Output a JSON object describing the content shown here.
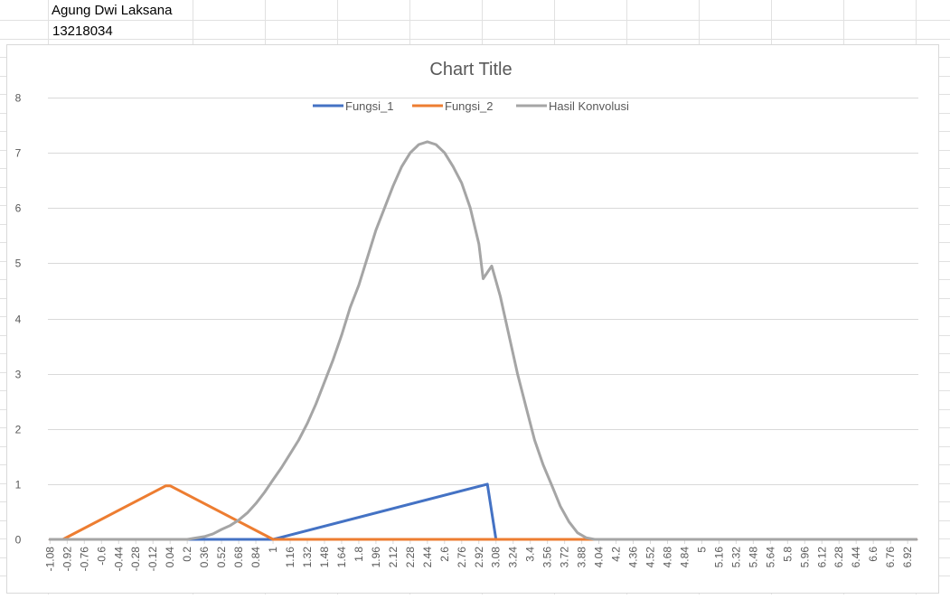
{
  "sheet": {
    "cells": {
      "name": "Agung Dwi Laksana",
      "id": "13218034"
    },
    "grid_color": "#e1e1e1"
  },
  "chart_data": {
    "type": "line",
    "title": "Chart Title",
    "xlabel": "",
    "ylabel": "",
    "ylim": [
      0,
      8
    ],
    "y_ticks": [
      0,
      1,
      2,
      3,
      4,
      5,
      6,
      7,
      8
    ],
    "x_start": -1.08,
    "x_step": 0.04,
    "x_end": 7.0,
    "x_label_every": 4,
    "grid": true,
    "legend_position": "top",
    "series": [
      {
        "name": "Fungsi_1",
        "color": "#4472c4",
        "points": [
          [
            -1.08,
            0
          ],
          [
            1.0,
            0
          ],
          [
            1.04,
            0.02
          ],
          [
            3.0,
            1.0
          ],
          [
            3.08,
            0
          ],
          [
            7.0,
            0
          ]
        ]
      },
      {
        "name": "Fungsi_2",
        "color": "#ed7d31",
        "points": [
          [
            -1.08,
            0
          ],
          [
            -0.96,
            0
          ],
          [
            0.0,
            0.97
          ],
          [
            0.04,
            0.97
          ],
          [
            1.0,
            0
          ],
          [
            7.0,
            0
          ]
        ]
      },
      {
        "name": "Hasil Konvolusi",
        "color": "#a5a5a5",
        "points": [
          [
            -1.08,
            0
          ],
          [
            0.2,
            0
          ],
          [
            0.36,
            0.05
          ],
          [
            0.44,
            0.1
          ],
          [
            0.52,
            0.18
          ],
          [
            0.6,
            0.25
          ],
          [
            0.68,
            0.35
          ],
          [
            0.76,
            0.48
          ],
          [
            0.84,
            0.65
          ],
          [
            0.92,
            0.85
          ],
          [
            1.0,
            1.08
          ],
          [
            1.08,
            1.3
          ],
          [
            1.16,
            1.55
          ],
          [
            1.24,
            1.8
          ],
          [
            1.32,
            2.1
          ],
          [
            1.4,
            2.45
          ],
          [
            1.48,
            2.85
          ],
          [
            1.56,
            3.25
          ],
          [
            1.64,
            3.7
          ],
          [
            1.72,
            4.2
          ],
          [
            1.8,
            4.6
          ],
          [
            1.88,
            5.1
          ],
          [
            1.96,
            5.6
          ],
          [
            2.04,
            6.0
          ],
          [
            2.12,
            6.4
          ],
          [
            2.2,
            6.75
          ],
          [
            2.28,
            7.0
          ],
          [
            2.36,
            7.15
          ],
          [
            2.44,
            7.2
          ],
          [
            2.52,
            7.15
          ],
          [
            2.6,
            7.0
          ],
          [
            2.68,
            6.75
          ],
          [
            2.76,
            6.45
          ],
          [
            2.84,
            6.0
          ],
          [
            2.92,
            5.35
          ],
          [
            2.96,
            4.72
          ],
          [
            3.04,
            4.95
          ],
          [
            3.12,
            4.4
          ],
          [
            3.2,
            3.7
          ],
          [
            3.28,
            3.0
          ],
          [
            3.36,
            2.4
          ],
          [
            3.44,
            1.8
          ],
          [
            3.52,
            1.35
          ],
          [
            3.6,
            0.98
          ],
          [
            3.68,
            0.6
          ],
          [
            3.76,
            0.32
          ],
          [
            3.84,
            0.12
          ],
          [
            3.92,
            0.03
          ],
          [
            4.0,
            0
          ],
          [
            7.0,
            0
          ]
        ]
      }
    ]
  }
}
